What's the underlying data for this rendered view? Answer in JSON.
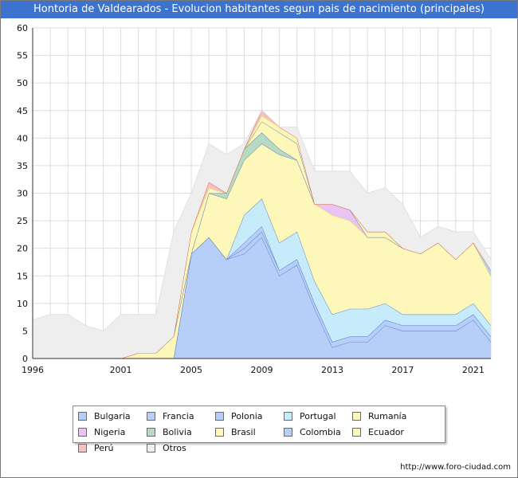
{
  "header": {
    "title": "Hontoria de Valdearados - Evolucion habitantes segun pais de nacimiento (principales)"
  },
  "footer": {
    "source": "http://www.foro-ciudad.com"
  },
  "chart_data": {
    "type": "area",
    "stacked": true,
    "xlim": [
      1996,
      2022
    ],
    "ylim": [
      0,
      60
    ],
    "x_ticks": [
      1996,
      2001,
      2005,
      2009,
      2013,
      2017,
      2021
    ],
    "y_ticks": [
      0,
      5,
      10,
      15,
      20,
      25,
      30,
      35,
      40,
      45,
      50,
      55,
      60
    ],
    "grid": true,
    "legend_position": "bottom",
    "x": [
      1996,
      1997,
      1998,
      1999,
      2000,
      2001,
      2002,
      2003,
      2004,
      2005,
      2006,
      2007,
      2008,
      2009,
      2010,
      2011,
      2012,
      2013,
      2014,
      2015,
      2016,
      2017,
      2018,
      2019,
      2020,
      2021,
      2022
    ],
    "series": [
      {
        "name": "Bulgaria",
        "color": "#b7cff8",
        "values": [
          0,
          0,
          0,
          0,
          0,
          0,
          0,
          0,
          0,
          19,
          22,
          18,
          19,
          22,
          15,
          17,
          9,
          2,
          3,
          3,
          6,
          5,
          5,
          5,
          5,
          7,
          3
        ]
      },
      {
        "name": "Francia",
        "color": "#b7cff8",
        "values": [
          0,
          0,
          0,
          0,
          0,
          0,
          0,
          0,
          0,
          0,
          0,
          0,
          1,
          1,
          1,
          1,
          1,
          1,
          1,
          1,
          1,
          1,
          1,
          1,
          1,
          1,
          1
        ]
      },
      {
        "name": "Polonia",
        "color": "#b7cff8",
        "values": [
          0,
          0,
          0,
          0,
          0,
          0,
          0,
          0,
          0,
          0,
          0,
          0,
          1,
          1,
          0,
          0,
          0,
          0,
          0,
          0,
          0,
          0,
          0,
          0,
          0,
          0,
          0
        ]
      },
      {
        "name": "Portugal",
        "color": "#c6ebfa",
        "values": [
          0,
          0,
          0,
          0,
          0,
          0,
          0,
          0,
          0,
          0,
          0,
          0,
          5,
          5,
          5,
          5,
          4,
          5,
          5,
          5,
          3,
          2,
          2,
          2,
          2,
          2,
          2
        ]
      },
      {
        "name": "Rumanía",
        "color": "#fdf7b9",
        "values": [
          0,
          0,
          0,
          0,
          0,
          0,
          1,
          1,
          4,
          0,
          8,
          11,
          10,
          10,
          16,
          13,
          14,
          18,
          16,
          13,
          12,
          12,
          11,
          13,
          10,
          11,
          9
        ]
      },
      {
        "name": "Nigeria",
        "color": "#e8c3f3",
        "values": [
          0,
          0,
          0,
          0,
          0,
          0,
          0,
          0,
          0,
          0,
          0,
          0,
          0,
          0,
          0,
          0,
          0,
          2,
          2,
          0,
          0,
          0,
          0,
          0,
          0,
          0,
          0
        ]
      },
      {
        "name": "Bolivia",
        "color": "#b5dcc3",
        "values": [
          0,
          0,
          0,
          0,
          0,
          0,
          0,
          0,
          0,
          0,
          0,
          1,
          2,
          2,
          1,
          0,
          0,
          0,
          0,
          0,
          0,
          0,
          0,
          0,
          0,
          0,
          0
        ]
      },
      {
        "name": "Brasil",
        "color": "#fdf7b9",
        "values": [
          0,
          0,
          0,
          0,
          0,
          0,
          0,
          0,
          0,
          4,
          1,
          0,
          0,
          2,
          3,
          3,
          0,
          0,
          0,
          0,
          0,
          0,
          0,
          0,
          0,
          0,
          0
        ]
      },
      {
        "name": "Colombia",
        "color": "#b7cff8",
        "values": [
          0,
          0,
          0,
          0,
          0,
          0,
          0,
          0,
          0,
          0,
          0,
          0,
          0,
          0,
          0,
          0,
          0,
          0,
          0,
          0,
          0,
          0,
          0,
          0,
          0,
          0,
          1
        ]
      },
      {
        "name": "Ecuador",
        "color": "#fdf7b9",
        "values": [
          0,
          0,
          0,
          0,
          0,
          0,
          0,
          0,
          0,
          0,
          0,
          0,
          0,
          1,
          1,
          1,
          0,
          0,
          0,
          1,
          1,
          0,
          0,
          0,
          0,
          0,
          0
        ]
      },
      {
        "name": "Perú",
        "color": "#f6c1c1",
        "values": [
          0,
          0,
          0,
          0,
          0,
          0,
          0,
          0,
          0,
          0,
          1,
          0,
          0,
          1,
          0,
          0,
          0,
          0,
          0,
          0,
          0,
          0,
          0,
          0,
          0,
          0,
          0
        ]
      },
      {
        "name": "Otros",
        "color": "#eeeeee",
        "values": [
          7,
          8,
          8,
          6,
          5,
          8,
          7,
          7,
          19,
          7,
          7,
          7,
          1,
          0,
          0,
          2,
          6,
          6,
          7,
          7,
          8,
          8,
          3,
          3,
          5,
          2,
          2
        ]
      }
    ]
  }
}
